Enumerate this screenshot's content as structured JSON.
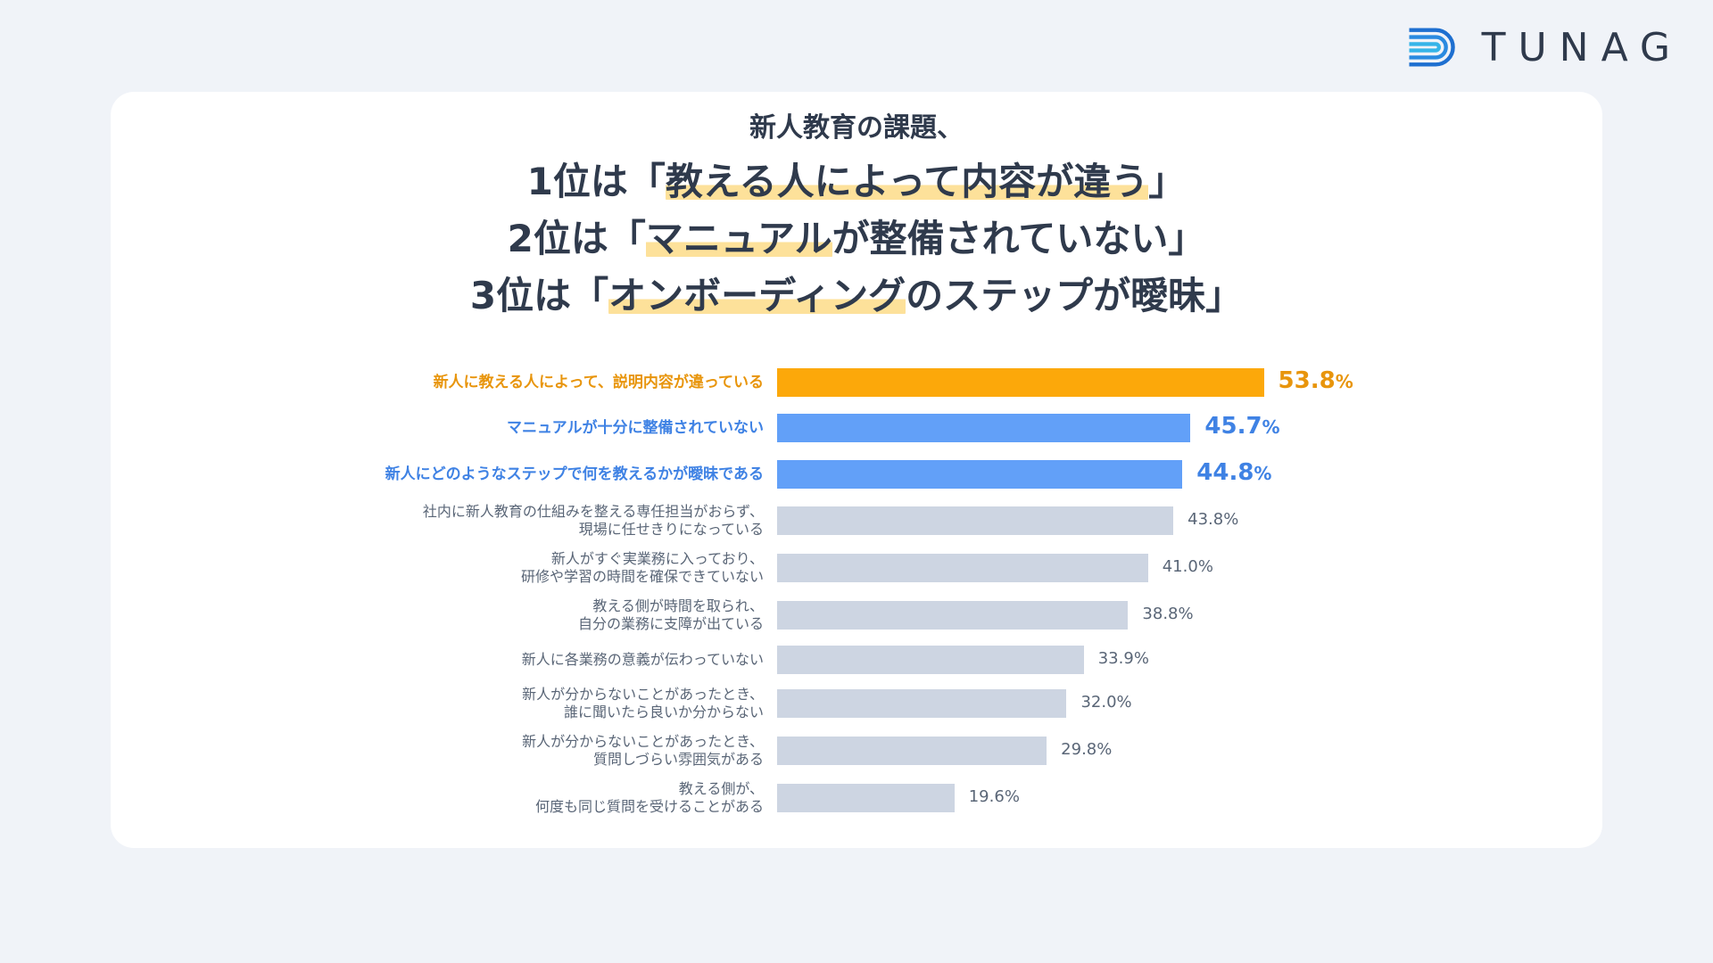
{
  "brand": {
    "name": "TUNAG"
  },
  "headline": {
    "sub": "新人教育の課題、",
    "lines": [
      {
        "pre": "1位は「",
        "mark": "教える人によって内容が違う",
        "post": "」"
      },
      {
        "pre": "2位は「",
        "mark": "マニュアル",
        "post": "が整備されていない」"
      },
      {
        "pre": "3位は「",
        "mark": "オンボーディング",
        "post": "のステップが曖昧」"
      }
    ]
  },
  "colors": {
    "rank1": "#fca80a",
    "rank1_text": "#e8950c",
    "rank2_3": "#62a0f8",
    "rank2_3_text": "#3f82e4",
    "other": "#cdd5e2",
    "highlight": "#fde19a"
  },
  "chart_data": {
    "type": "bar",
    "orientation": "horizontal",
    "value_suffix": "%",
    "categories": [
      [
        "新人に教える人によって、説明内容が違っている"
      ],
      [
        "マニュアルが十分に整備されていない"
      ],
      [
        "新人にどのようなステップで何を教えるかが曖昧である"
      ],
      [
        "社内に新人教育の仕組みを整える専任担当がおらず、",
        "現場に任せきりになっている"
      ],
      [
        "新人がすぐ実業務に入っており、",
        "研修や学習の時間を確保できていない"
      ],
      [
        "教える側が時間を取られ、",
        "自分の業務に支障が出ている"
      ],
      [
        "新人に各業務の意義が伝わっていない"
      ],
      [
        "新人が分からないことがあったとき、",
        "誰に聞いたら良いか分からない"
      ],
      [
        "新人が分からないことがあったとき、",
        "質問しづらい雰囲気がある"
      ],
      [
        "教える側が、",
        "何度も同じ質問を受けることがある"
      ]
    ],
    "values": [
      53.8,
      45.7,
      44.8,
      43.8,
      41.0,
      38.8,
      33.9,
      32.0,
      29.8,
      19.6
    ],
    "value_labels": [
      "53.8",
      "45.7",
      "44.8",
      "43.8%",
      "41.0%",
      "38.8%",
      "33.9%",
      "32.0%",
      "29.8%",
      "19.6%"
    ],
    "highlight_levels": [
      "first",
      "second",
      "second",
      "none",
      "none",
      "none",
      "none",
      "none",
      "none",
      "none"
    ]
  }
}
